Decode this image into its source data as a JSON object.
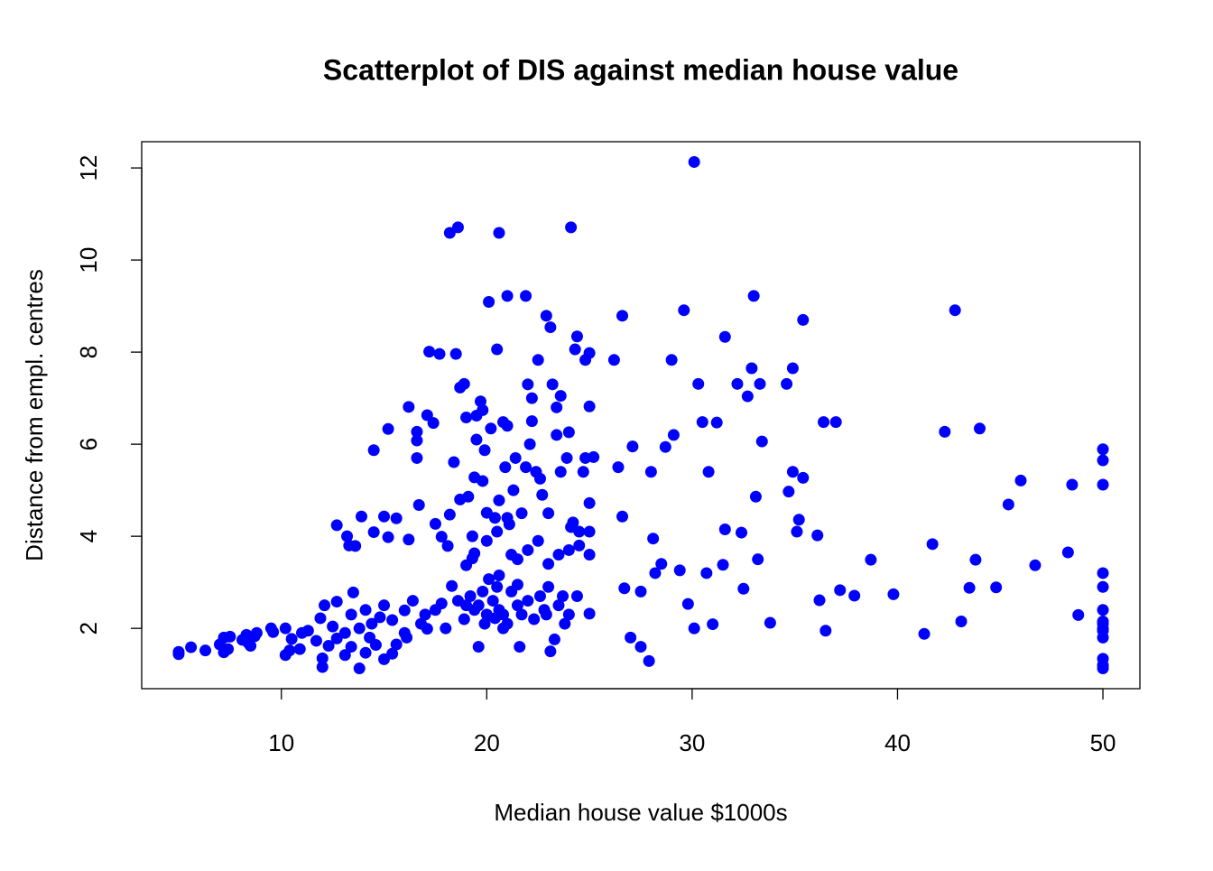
{
  "chart_data": {
    "type": "scatter",
    "title": "Scatterplot of DIS against median house value",
    "x_label": "Median house value $1000s",
    "y_label": "Distance from empl. centres",
    "color": "#0000ff",
    "xlim": [
      3.2,
      51.8
    ],
    "ylim": [
      0.69,
      12.57
    ],
    "xticks": [
      10,
      20,
      30,
      40,
      50
    ],
    "yticks": [
      2,
      4,
      6,
      8,
      10,
      12
    ],
    "x": [
      5,
      5,
      5.6,
      6.3,
      7,
      7.2,
      7.2,
      7.4,
      7.5,
      8.1,
      8.3,
      8.4,
      8.5,
      8.7,
      8.8,
      9.5,
      9.6,
      10.2,
      10.2,
      10.4,
      10.5,
      10.9,
      11,
      11.3,
      11.7,
      11.9,
      12,
      12,
      12.1,
      12.3,
      12.5,
      12.7,
      12.7,
      12.7,
      13.1,
      13.1,
      13.2,
      13.3,
      13.4,
      13.4,
      13.5,
      13.6,
      13.8,
      13.8,
      13.9,
      14.1,
      14.1,
      14.3,
      14.4,
      14.5,
      14.5,
      14.6,
      14.8,
      15,
      15,
      15,
      15.2,
      15.2,
      15.4,
      15.4,
      15.6,
      15.6,
      16,
      16.1,
      16.2,
      16.2,
      16.4,
      16.6,
      16.6,
      16.6,
      16.7,
      16.8,
      17.1,
      17.1,
      17.2,
      17.4,
      17.5,
      17.5,
      17.7,
      17.8,
      17.8,
      18.1,
      18.2,
      18.2,
      18.3,
      18.4,
      18.5,
      18.6,
      18.7,
      18.7,
      18.9,
      19,
      19,
      19.1,
      19.3,
      19.4,
      19.4,
      19.5,
      19.6,
      19.6,
      19.7,
      19.8,
      19.9,
      20,
      20.1,
      20.1,
      20.2,
      20.4,
      20.4,
      20.5,
      20.6,
      20.6,
      20.6,
      20.8,
      20.8,
      21,
      21.1,
      21.2,
      21.4,
      21.5,
      21.6,
      21.7,
      21.9,
      21.9,
      22,
      22.2,
      22.2,
      22.4,
      22.5,
      22.6,
      22.8,
      22.9,
      23,
      23.1,
      23.1,
      23.2,
      23.3,
      23.4,
      23.6,
      23.8,
      23.9,
      24,
      24.1,
      24.2,
      24.3,
      24.4,
      24.5,
      24.7,
      24.8,
      25,
      25,
      25,
      25,
      25,
      25.2,
      26.2,
      26.4,
      26.6,
      26.6,
      26.7,
      27,
      27.1,
      27.5,
      27.5,
      27.9,
      28,
      28.1,
      28.2,
      28.5,
      28.7,
      29,
      29.1,
      29.4,
      29.6,
      29.8,
      30.1,
      30.1,
      30.3,
      30.5,
      30.7,
      30.8,
      31,
      31.2,
      31.5,
      31.6,
      31.6,
      32.2,
      32.4,
      32.5,
      32.7,
      32.9,
      33,
      33.1,
      33.2,
      33.3,
      33.4,
      33.8,
      34.6,
      34.7,
      34.9,
      34.9,
      35.1,
      35.2,
      35.4,
      35.4,
      36.1,
      36.2,
      36.4,
      36.5,
      37,
      37.2,
      37.9,
      38.7,
      39.8,
      41.3,
      41.7,
      42.3,
      42.8,
      43.1,
      43.5,
      43.8,
      44,
      44.8,
      45.4,
      46,
      46.7,
      48.3,
      48.5,
      48.8,
      50,
      50,
      50,
      50,
      50,
      50,
      50,
      50,
      50,
      50,
      50,
      50,
      50,
      50,
      18.9,
      19.2,
      19.4,
      19.8,
      20,
      20.3,
      20.6,
      21,
      21.2,
      21.7,
      22,
      22.3,
      22.6,
      23,
      23.5,
      24,
      24.4,
      19,
      20.5,
      21.5,
      22.9,
      23.7,
      17,
      16,
      18,
      18.6,
      19.9,
      20.8,
      19.3,
      20,
      21,
      21.5,
      22,
      22.5,
      23,
      23.5,
      24,
      24.5,
      25,
      20.5,
      19.8,
      21.3,
      22.7,
      23.6,
      24.8,
      24.1,
      20.9,
      19.5,
      21,
      22.1,
      23.4
    ],
    "y": [
      1.49,
      1.44,
      1.59,
      1.52,
      1.65,
      1.8,
      1.48,
      1.55,
      1.82,
      1.75,
      1.86,
      1.68,
      1.62,
      1.83,
      1.9,
      2,
      1.92,
      2,
      1.42,
      1.52,
      1.77,
      1.55,
      1.9,
      1.95,
      1.73,
      2.22,
      1.35,
      1.16,
      2.5,
      1.62,
      2.04,
      1.78,
      2.58,
      4.24,
      1.42,
      1.9,
      4,
      3.8,
      2.3,
      1.6,
      2.78,
      3.79,
      1.13,
      2,
      4.43,
      1.47,
      2.4,
      1.8,
      2.1,
      5.87,
      4.09,
      1.64,
      2.24,
      1.33,
      2.5,
      4.43,
      3.98,
      6.33,
      1.45,
      2.18,
      4.39,
      1.65,
      2.39,
      1.8,
      3.93,
      6.81,
      2.6,
      6.08,
      6.27,
      5.7,
      4.68,
      2.1,
      1.99,
      6.63,
      8.01,
      6.46,
      4.27,
      2.4,
      7.96,
      3.99,
      2.54,
      3.79,
      10.59,
      4.47,
      2.92,
      5.61,
      7.96,
      10.71,
      4.8,
      7.23,
      7.31,
      6.58,
      3.37,
      4.86,
      3.52,
      5.28,
      3.63,
      6.62,
      2.5,
      1.6,
      6.93,
      6.74,
      5.87,
      4.51,
      3.07,
      9.09,
      6.34,
      2.22,
      4.4,
      8.06,
      10.59,
      4.78,
      3.15,
      6.48,
      2,
      9.22,
      4.26,
      3.6,
      5.7,
      2.95,
      1.6,
      4.5,
      9.22,
      5.5,
      7.3,
      6.5,
      7,
      5.4,
      7.83,
      5.25,
      2.4,
      8.79,
      4.5,
      1.5,
      8.54,
      7.3,
      1.76,
      6.2,
      7.05,
      2.1,
      5.7,
      6.26,
      10.71,
      4.3,
      8.06,
      8.34,
      3.8,
      5.4,
      7.83,
      7.98,
      6.82,
      4.72,
      2.32,
      3.6,
      5.72,
      7.83,
      5.5,
      8.79,
      4.43,
      2.87,
      1.8,
      5.95,
      1.6,
      2.8,
      1.29,
      5.4,
      3.95,
      3.2,
      3.4,
      5.94,
      7.83,
      6.2,
      3.26,
      8.91,
      2.53,
      12.13,
      2,
      7.31,
      6.48,
      3.2,
      5.4,
      2.09,
      6.47,
      3.38,
      4.15,
      8.33,
      7.31,
      4.08,
      2.86,
      7.04,
      7.65,
      9.22,
      4.86,
      3.5,
      7.31,
      6.06,
      2.12,
      7.31,
      4.97,
      7.65,
      5.4,
      4.1,
      4.36,
      8.7,
      5.27,
      4.02,
      2.61,
      6.48,
      1.95,
      6.48,
      2.83,
      2.71,
      3.49,
      2.74,
      1.88,
      3.83,
      6.27,
      8.91,
      2.15,
      2.88,
      3.49,
      6.34,
      2.89,
      4.69,
      5.21,
      3.37,
      3.65,
      5.12,
      2.29,
      5.89,
      5.65,
      5.12,
      3.2,
      2.9,
      2.4,
      2.15,
      2,
      1.8,
      1.34,
      1.13,
      1.2,
      1.95,
      2.1,
      2.2,
      2.7,
      2.4,
      2.8,
      2.3,
      2.6,
      2.4,
      2.1,
      2.8,
      2.3,
      2.6,
      2.2,
      2.7,
      2.9,
      2.5,
      2.3,
      2.7,
      2.5,
      2.9,
      2.5,
      2.3,
      2.7,
      2.3,
      1.9,
      2,
      2.6,
      2.1,
      2.3,
      4,
      3.9,
      4.4,
      3.5,
      3.7,
      3.9,
      3.4,
      3.6,
      3.7,
      4.1,
      4.1,
      4.1,
      5.2,
      5,
      4.9,
      5.4,
      5.7,
      4.2,
      5.5,
      6.1,
      6.4,
      6,
      6.8
    ]
  }
}
